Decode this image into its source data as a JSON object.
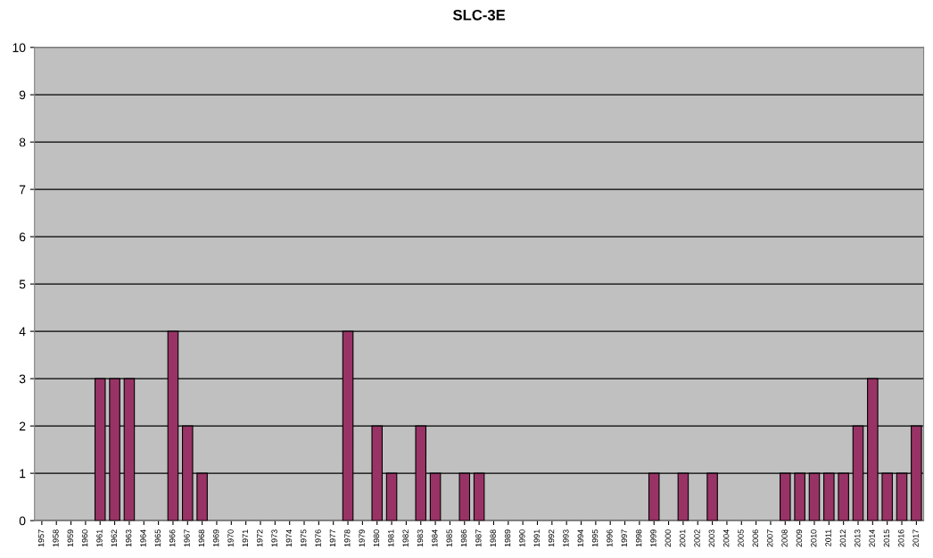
{
  "chart_data": {
    "type": "bar",
    "title": "SLC-3E",
    "categories": [
      "1957",
      "1958",
      "1959",
      "1960",
      "1961",
      "1962",
      "1963",
      "1964",
      "1965",
      "1966",
      "1967",
      "1968",
      "1969",
      "1970",
      "1971",
      "1972",
      "1973",
      "1974",
      "1975",
      "1976",
      "1977",
      "1978",
      "1979",
      "1980",
      "1981",
      "1982",
      "1983",
      "1984",
      "1985",
      "1986",
      "1987",
      "1988",
      "1989",
      "1990",
      "1991",
      "1992",
      "1993",
      "1994",
      "1995",
      "1996",
      "1997",
      "1998",
      "1999",
      "2000",
      "2001",
      "2002",
      "2003",
      "2004",
      "2005",
      "2006",
      "2007",
      "2008",
      "2009",
      "2010",
      "2011",
      "2012",
      "2013",
      "2014",
      "2015",
      "2016",
      "2017"
    ],
    "values": [
      0,
      0,
      0,
      0,
      3,
      3,
      3,
      0,
      0,
      4,
      2,
      1,
      0,
      0,
      0,
      0,
      0,
      0,
      0,
      0,
      0,
      4,
      0,
      2,
      1,
      0,
      2,
      1,
      0,
      1,
      1,
      0,
      0,
      0,
      0,
      0,
      0,
      0,
      0,
      0,
      0,
      0,
      1,
      0,
      1,
      0,
      1,
      0,
      0,
      0,
      0,
      1,
      1,
      1,
      1,
      1,
      2,
      3,
      1,
      1,
      2
    ],
    "color": "#993366",
    "ylim": [
      0,
      10
    ],
    "yticks": [
      0,
      1,
      2,
      3,
      4,
      5,
      6,
      7,
      8,
      9,
      10
    ],
    "grid": "y",
    "legend": false
  }
}
